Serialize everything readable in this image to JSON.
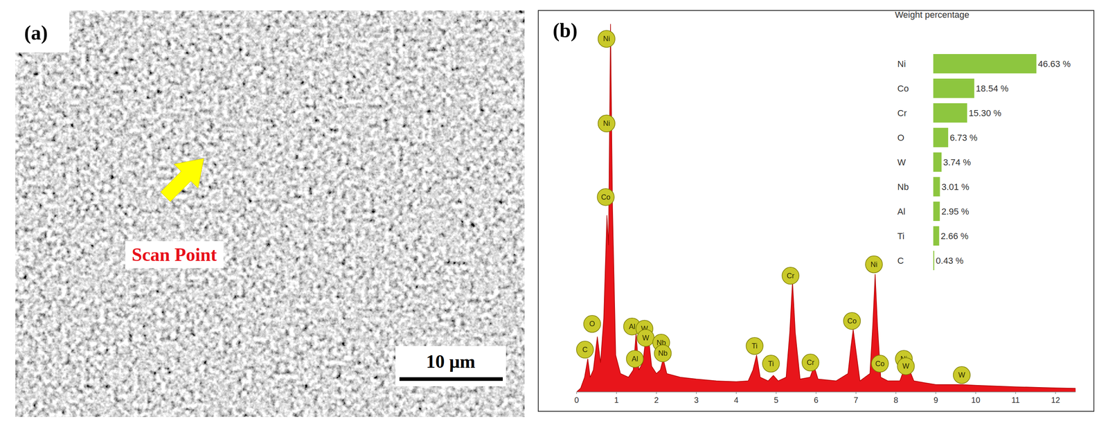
{
  "panel_a": {
    "label": "(a)",
    "annotation": "Scan Point",
    "scale_bar": "10 μm"
  },
  "panel_b": {
    "label": "(b)"
  },
  "chart_data": [
    {
      "type": "area",
      "color": "#e8151b",
      "x": [
        0,
        0.1,
        0.2,
        0.28,
        0.34,
        0.42,
        0.52,
        0.6,
        0.68,
        0.76,
        0.8,
        0.85,
        0.9,
        0.98,
        1.1,
        1.3,
        1.42,
        1.49,
        1.56,
        1.66,
        1.77,
        1.88,
        2.0,
        2.1,
        2.17,
        2.26,
        2.6,
        3.0,
        3.5,
        4.0,
        4.3,
        4.42,
        4.51,
        4.6,
        4.8,
        4.93,
        5.05,
        5.25,
        5.34,
        5.41,
        5.48,
        5.6,
        5.85,
        5.95,
        6.05,
        6.5,
        6.8,
        6.87,
        6.93,
        6.99,
        7.1,
        7.35,
        7.42,
        7.48,
        7.54,
        7.62,
        7.8,
        8.1,
        8.2,
        8.26,
        8.34,
        8.45,
        9.0,
        9.67,
        10,
        11,
        12,
        12.5
      ],
      "values": [
        0,
        1,
        4,
        9,
        4,
        6,
        15,
        8,
        20,
        48,
        40,
        100,
        50,
        10,
        5,
        4,
        6,
        16,
        6,
        8,
        18,
        7,
        5,
        6,
        9,
        5,
        4,
        3.5,
        3,
        2.8,
        3,
        6,
        10,
        4,
        3,
        4.5,
        3,
        4,
        16,
        30,
        16,
        3.5,
        4,
        7,
        3.5,
        3,
        5,
        12,
        17,
        12,
        3,
        5,
        18,
        32,
        18,
        4,
        3,
        3,
        6,
        7.5,
        6,
        3,
        2,
        2,
        1.8,
        1.4,
        1.1,
        1
      ],
      "xlim": [
        0,
        12.5
      ],
      "xticks": [
        0,
        1,
        2,
        3,
        4,
        5,
        6,
        7,
        8,
        9,
        10,
        11,
        12
      ],
      "ylim": [
        0,
        100
      ],
      "tick_labels": "x",
      "peak_labels": [
        {
          "label": "Ni",
          "x": 0.75,
          "y": 96
        },
        {
          "label": "Ni",
          "x": 0.75,
          "y": 73
        },
        {
          "label": "Co",
          "x": 0.73,
          "y": 53
        },
        {
          "label": "O",
          "x": 0.39,
          "y": 18.5
        },
        {
          "label": "C",
          "x": 0.21,
          "y": 11.5
        },
        {
          "label": "Al",
          "x": 1.39,
          "y": 17.8
        },
        {
          "label": "W",
          "x": 1.7,
          "y": 17.2
        },
        {
          "label": "W",
          "x": 1.73,
          "y": 14.7
        },
        {
          "label": "Al",
          "x": 1.46,
          "y": 9
        },
        {
          "label": "Nb",
          "x": 2.12,
          "y": 13.4
        },
        {
          "label": "Nb",
          "x": 2.16,
          "y": 10.5
        },
        {
          "label": "Ti",
          "x": 4.46,
          "y": 12.5
        },
        {
          "label": "Ti",
          "x": 4.87,
          "y": 7.7
        },
        {
          "label": "Cr",
          "x": 5.36,
          "y": 31.6
        },
        {
          "label": "Cr",
          "x": 5.86,
          "y": 8
        },
        {
          "label": "Co",
          "x": 6.9,
          "y": 19.3
        },
        {
          "label": "Co",
          "x": 7.6,
          "y": 7.7
        },
        {
          "label": "Ni",
          "x": 7.45,
          "y": 34.7
        },
        {
          "label": "Ni",
          "x": 8.2,
          "y": 9
        },
        {
          "label": "W",
          "x": 8.25,
          "y": 7
        },
        {
          "label": "W",
          "x": 9.65,
          "y": 4.6
        }
      ]
    },
    {
      "type": "bar",
      "orientation": "horizontal",
      "title": "Weight percentage",
      "categories": [
        "Ni",
        "Co",
        "Cr",
        "O",
        "W",
        "Nb",
        "Al",
        "Ti",
        "C"
      ],
      "values": [
        46.63,
        18.54,
        15.3,
        6.73,
        3.74,
        3.01,
        2.95,
        2.66,
        0.43
      ],
      "value_labels": [
        "46.63 %",
        "18.54 %",
        "15.30 %",
        "6.73 %",
        "3.74 %",
        "3.01 %",
        "2.95 %",
        "2.66 %",
        "0.43 %"
      ],
      "color": "#8dc63f",
      "xlim": [
        0,
        50
      ],
      "tick_labels": false,
      "data_labels": true
    }
  ]
}
